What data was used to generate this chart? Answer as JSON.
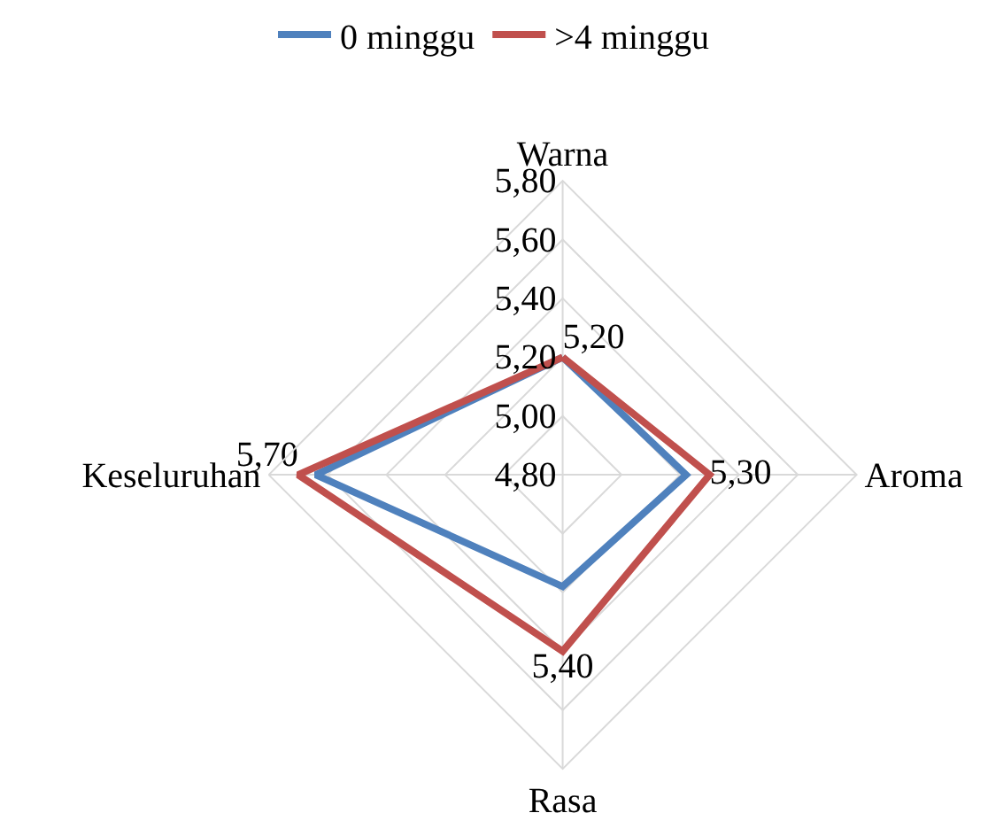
{
  "chart_data": {
    "type": "radar",
    "categories": [
      "Warna",
      "Aroma",
      "Rasa",
      "Keseluruhan"
    ],
    "series": [
      {
        "name": "0 minggu",
        "color": "#4f81bd",
        "values": [
          5.2,
          5.22,
          5.18,
          5.64
        ]
      },
      {
        "name": ">4 minggu",
        "color": "#c0504d",
        "values": [
          5.2,
          5.3,
          5.4,
          5.7
        ],
        "value_labels": [
          "5,20",
          "5,30",
          "5,40",
          "5,70"
        ]
      }
    ],
    "ylim": [
      4.8,
      5.8
    ],
    "yticks": [
      {
        "value": 4.8,
        "label": "4,80"
      },
      {
        "value": 5.0,
        "label": "5,00"
      },
      {
        "value": 5.2,
        "label": "5,20"
      },
      {
        "value": 5.4,
        "label": "5,40"
      },
      {
        "value": 5.6,
        "label": "5,60"
      },
      {
        "value": 5.8,
        "label": "5,80"
      }
    ],
    "grid": true,
    "legend": "top",
    "marker": "none",
    "line_style": "solid"
  }
}
